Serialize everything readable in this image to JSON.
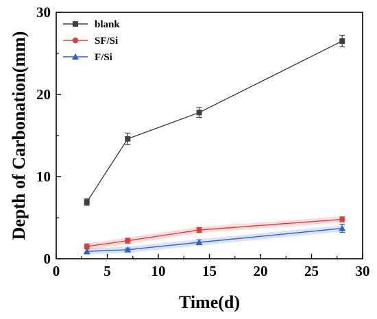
{
  "chart_data": {
    "type": "line",
    "xlabel": "Time(d)",
    "ylabel": "Depth of Carbonation(mm)",
    "xlim": [
      0,
      30
    ],
    "ylim": [
      0,
      30
    ],
    "xticks": [
      "0",
      "5",
      "10",
      "15",
      "20",
      "25",
      "30"
    ],
    "yticks": [
      "0",
      "10",
      "20",
      "30"
    ],
    "x": [
      3,
      7,
      14,
      28
    ],
    "grid": false,
    "legend_position": "top-left",
    "series": [
      {
        "name": "blank",
        "color": "#404040",
        "marker": "square",
        "values": [
          6.9,
          14.6,
          17.8,
          26.5
        ],
        "errors": [
          0.4,
          0.7,
          0.6,
          0.7
        ]
      },
      {
        "name": "SF/Si",
        "color": "#e03c3c",
        "marker": "circle",
        "values": [
          1.5,
          2.2,
          3.5,
          4.8
        ],
        "errors": [
          0.3,
          0.3,
          0.3,
          0.3
        ]
      },
      {
        "name": "F/Si",
        "color": "#2f5fd0",
        "marker": "triangle",
        "values": [
          0.9,
          1.1,
          2.0,
          3.7
        ],
        "errors": [
          0.3,
          0.2,
          0.3,
          0.5
        ]
      }
    ]
  }
}
